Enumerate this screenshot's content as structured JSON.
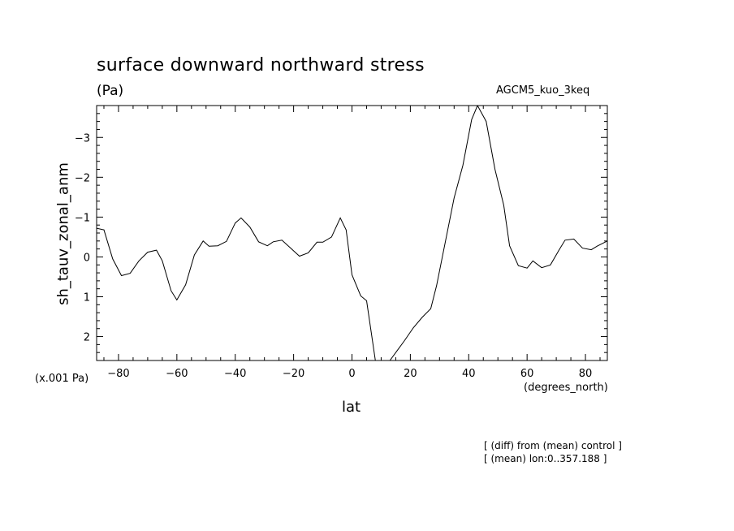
{
  "title": "surface downward northward stress",
  "units": "(Pa)",
  "model": "AGCM5_kuo_3keq",
  "multiplier": "(x.001 Pa)",
  "notes": [
    "[ (diff) from (mean) control ]",
    "[ (mean) lon:0..357.188 ]"
  ],
  "chart_data": {
    "type": "line",
    "xlabel": "lat",
    "xunit": "(degrees_north)",
    "ylabel": "sh_tauv_zonal_anm",
    "xlim": [
      -87.5,
      87.5
    ],
    "ylim": [
      2.6,
      -3.8
    ],
    "y_inverted": true,
    "xticks": [
      -80,
      -60,
      -40,
      -20,
      0,
      20,
      40,
      60,
      80
    ],
    "yticks": [
      2,
      1,
      0,
      -1,
      -2,
      -3
    ],
    "xtick_labels": [
      "−80",
      "−60",
      "−40",
      "−20",
      "0",
      "20",
      "40",
      "60",
      "80"
    ],
    "ytick_labels": [
      "2",
      "1",
      "0",
      "−1",
      "−2",
      "−3"
    ],
    "series": [
      {
        "x": [
          -87.5,
          -85,
          -82,
          -79,
          -76,
          -73,
          -70,
          -67,
          -65,
          -62,
          -60,
          -57,
          -54,
          -51,
          -49,
          -46,
          -43,
          -40,
          -38,
          -35,
          -32,
          -29,
          -27,
          -24,
          -21,
          -18,
          -15,
          -12,
          -10,
          -7,
          -4,
          -2,
          0,
          3,
          5,
          8,
          13,
          16,
          18,
          21,
          24,
          27,
          29,
          32,
          35,
          38,
          41,
          43,
          46,
          49,
          52,
          54,
          57,
          60,
          62,
          65,
          68,
          71,
          73,
          76,
          79,
          82,
          84,
          87.5
        ],
        "values": [
          -0.72,
          -0.68,
          0.05,
          0.47,
          0.41,
          0.1,
          -0.12,
          -0.17,
          0.1,
          0.85,
          1.08,
          0.7,
          -0.05,
          -0.4,
          -0.27,
          -0.28,
          -0.39,
          -0.85,
          -0.98,
          -0.75,
          -0.38,
          -0.28,
          -0.38,
          -0.42,
          -0.22,
          -0.02,
          -0.1,
          -0.37,
          -0.37,
          -0.5,
          -0.98,
          -0.68,
          0.45,
          0.98,
          1.1,
          2.6,
          2.6,
          2.3,
          2.1,
          1.78,
          1.52,
          1.3,
          0.72,
          -0.38,
          -1.48,
          -2.3,
          -3.45,
          -3.8,
          -3.4,
          -2.2,
          -1.3,
          -0.28,
          0.22,
          0.28,
          0.1,
          0.27,
          0.2,
          -0.18,
          -0.42,
          -0.45,
          -0.22,
          -0.18,
          -0.27,
          -0.4
        ]
      }
    ],
    "grid": false
  }
}
